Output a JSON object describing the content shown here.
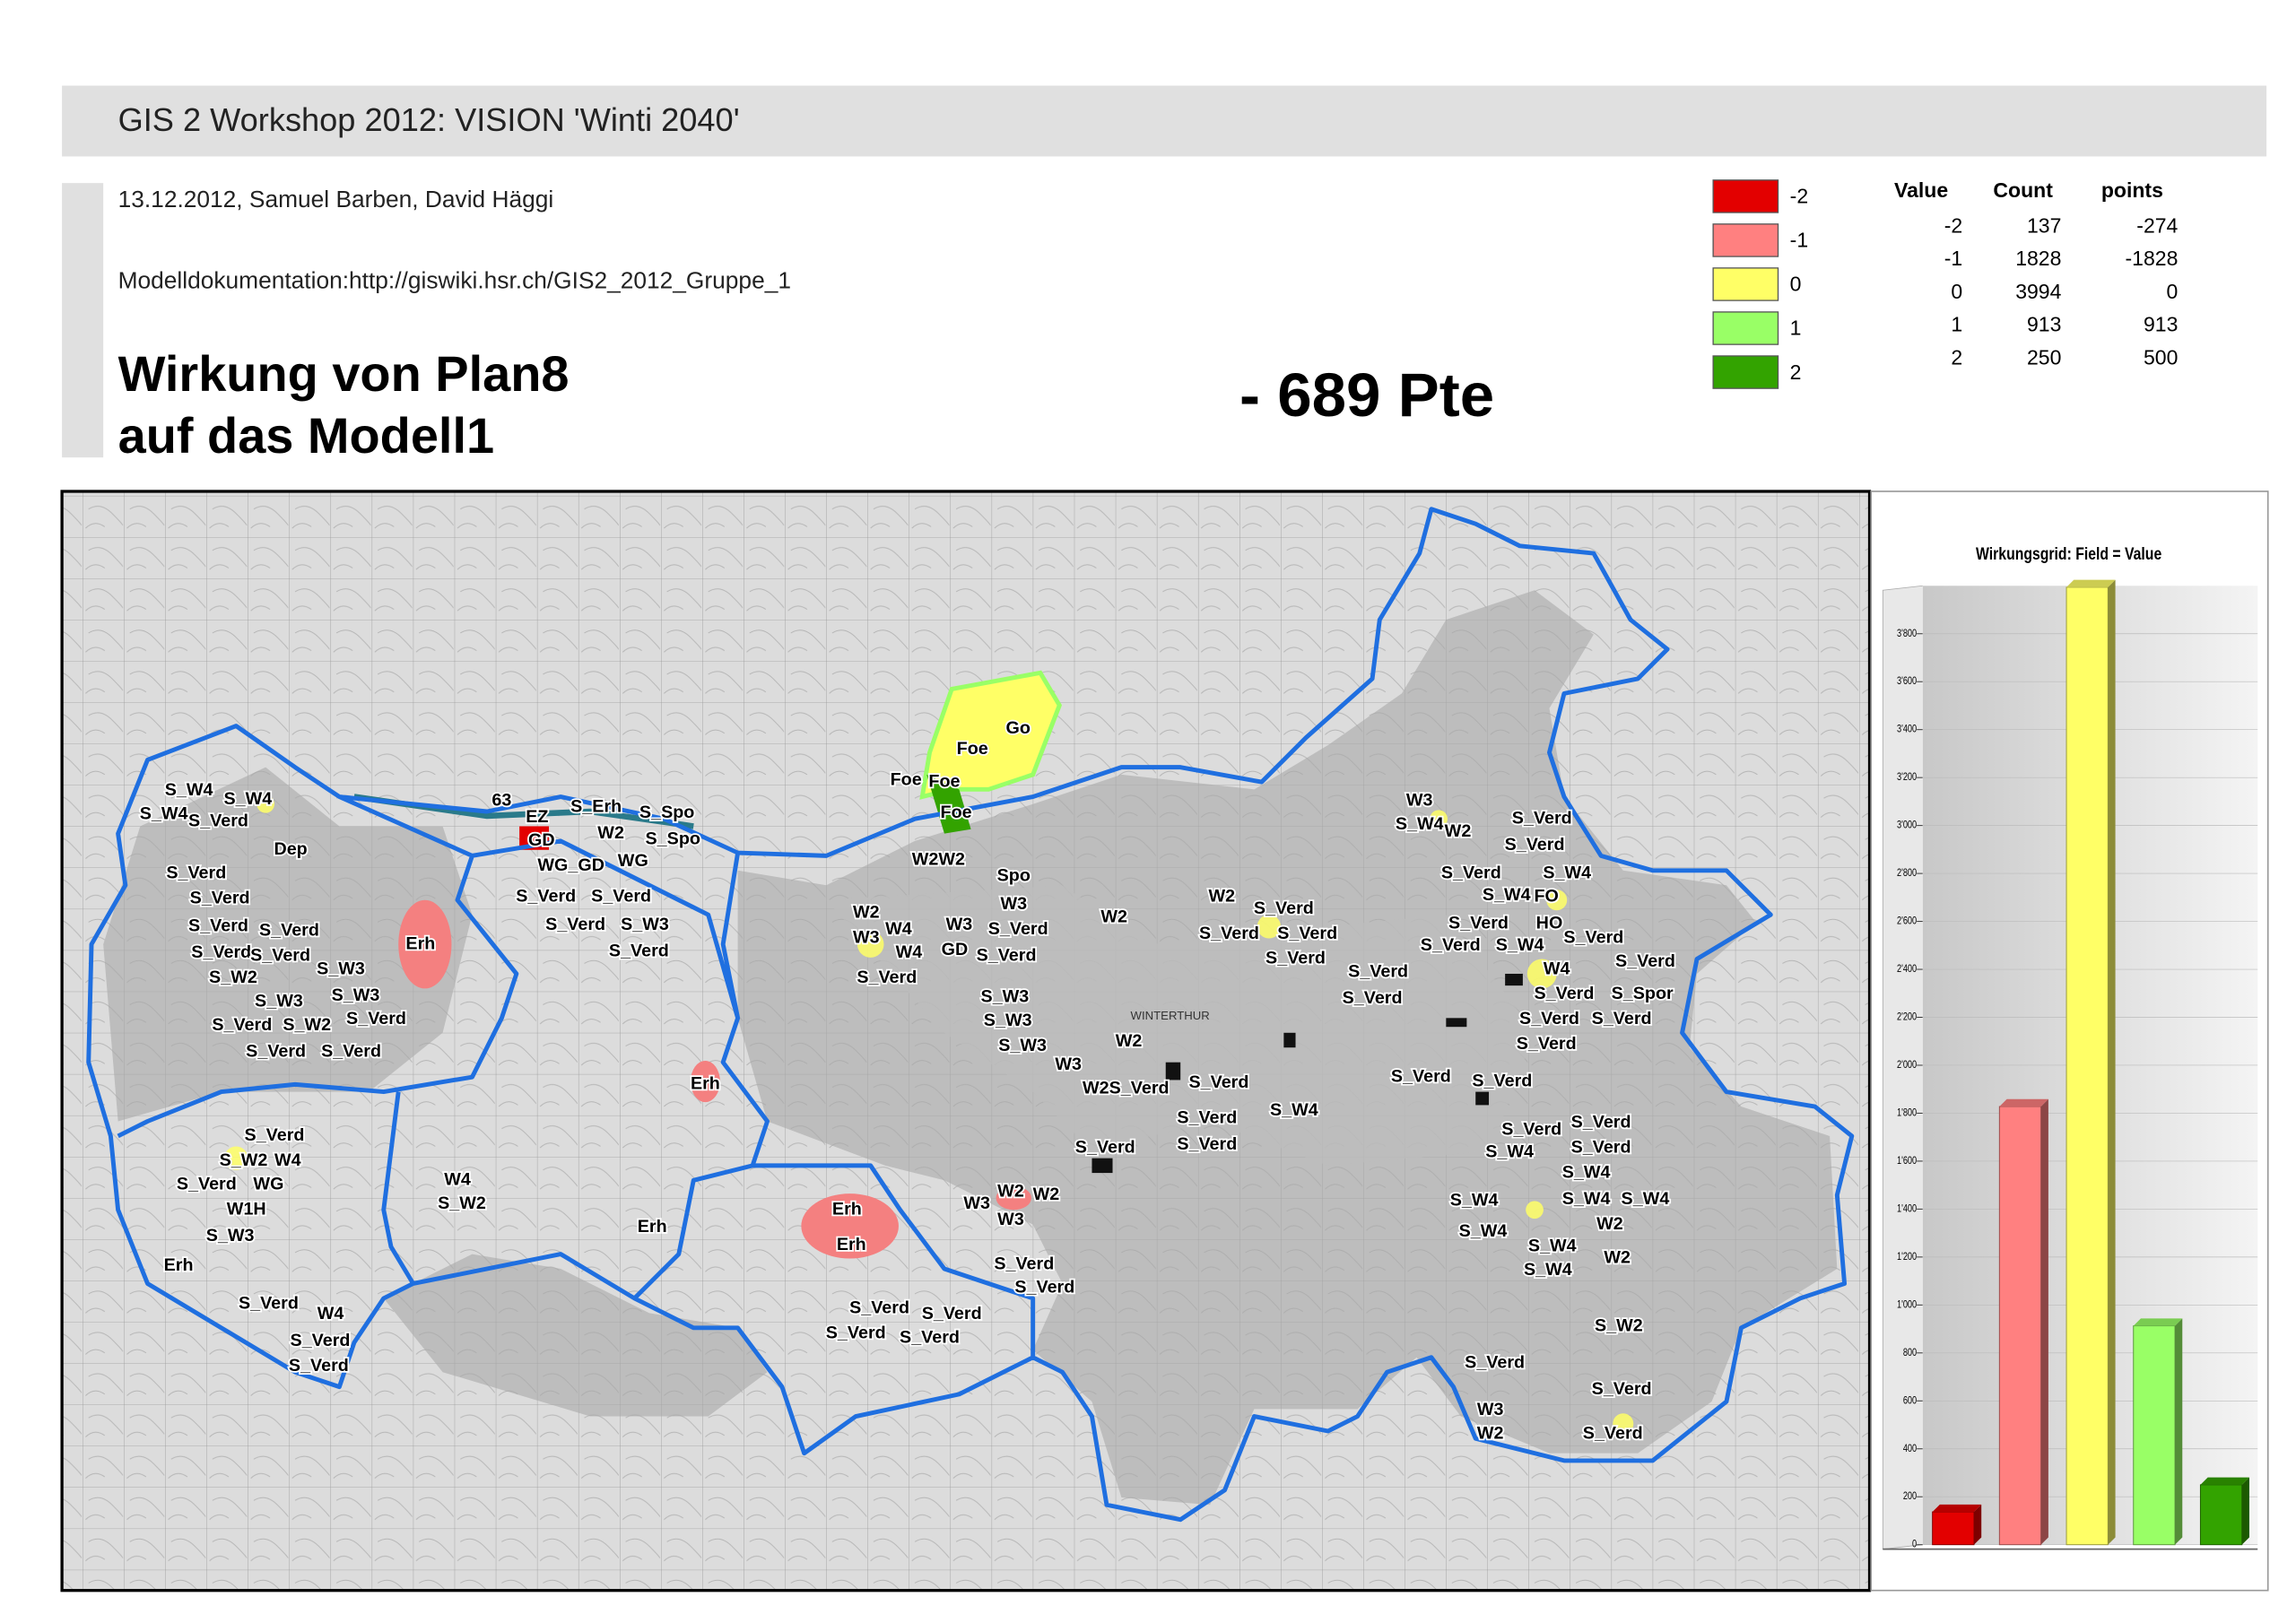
{
  "header": {
    "title": "GIS 2 Workshop 2012: VISION 'Winti 2040'",
    "date": "13.12.2012, Samuel Barben, David Häggi",
    "doc": "Modelldokumentation:http://giswiki.hsr.ch/GIS2_2012_Gruppe_1",
    "heading": [
      "Wirkung von Plan8",
      "auf das Modell1"
    ],
    "result": "- 689 Pte"
  },
  "legend": {
    "items": [
      {
        "label": "-2",
        "color": "#e30000"
      },
      {
        "label": "-1",
        "color": "#ff8080"
      },
      {
        "label": "0",
        "color": "#ffff66"
      },
      {
        "label": "1",
        "color": "#99ff66"
      },
      {
        "label": "2",
        "color": "#33a300"
      }
    ]
  },
  "table": {
    "header": [
      "Value",
      "Count",
      "points"
    ],
    "rows": [
      [
        "-2",
        "137",
        "-274"
      ],
      [
        "-1",
        "1828",
        "-1828"
      ],
      [
        "0",
        "3994",
        "0"
      ],
      [
        "1",
        "913",
        "913"
      ],
      [
        "2",
        "250",
        "500"
      ]
    ]
  },
  "map": {
    "place": "WINTERTHUR",
    "labels": [
      "63",
      "EZ",
      "GD",
      "S_Erh",
      "S_Spo",
      "W2",
      "S_Spo",
      "WG_GD",
      "WG",
      "S_Verd",
      "S_Verd",
      "S_Verd",
      "S_W3",
      "S_Verd",
      "Erh",
      "Erh",
      "Erh",
      "Erh",
      "Erh",
      "Erh",
      "Go",
      "Foe",
      "Foe",
      "Foe",
      "Foe",
      "W2W2",
      "Spo",
      "W3",
      "S_W4",
      "S_W4",
      "S_W4",
      "S_Verd",
      "Dep",
      "S_Verd",
      "S_Verd",
      "S_Verd",
      "S_Verd",
      "S_Verd",
      "S_Verd",
      "S_W2",
      "S_W3",
      "S_W3",
      "S_W3",
      "S_Verd",
      "S_W2",
      "S_Verd",
      "S_Verd",
      "S_Verd",
      "S_Verd",
      "S_W2",
      "W4",
      "S_Verd",
      "WG",
      "W1H",
      "S_W3",
      "W4",
      "S_W2",
      "S_Verd",
      "W4",
      "S_Verd",
      "S_Verd",
      "W2",
      "W3",
      "W4",
      "W4",
      "W3",
      "S_Verd",
      "GD",
      "S_Verd",
      "S_Verd",
      "W2",
      "S_W3",
      "S_W3",
      "S_W3",
      "W3",
      "W2",
      "W2S_Verd",
      "S_Verd",
      "S_Verd",
      "S_W4",
      "S_Verd",
      "S_Verd",
      "W2",
      "S_Verd",
      "S_Verd",
      "S_Verd",
      "S_Verd",
      "S_Verd",
      "S_Verd",
      "W3",
      "S_W4",
      "W2",
      "S_Verd",
      "S_Verd",
      "S_Verd",
      "S_W4",
      "S_W4",
      "FO",
      "S_Verd",
      "HO",
      "S_Verd",
      "S_Verd",
      "S_W4",
      "S_Verd",
      "W4",
      "S_Verd",
      "S_Spor",
      "S_Verd",
      "S_Verd",
      "S_Verd",
      "S_Verd",
      "S_Verd",
      "S_Verd",
      "S_Verd",
      "S_W4",
      "S_Verd",
      "S_W4",
      "S_W4",
      "S_W4",
      "S_W4",
      "W2",
      "S_W4",
      "S_W4",
      "W2",
      "S_W4",
      "W3",
      "W2",
      "W3",
      "W2",
      "S_Verd",
      "S_Verd",
      "S_Verd",
      "S_Verd",
      "S_Verd",
      "S_Verd",
      "S_W2",
      "S_Verd",
      "S_Verd",
      "W3",
      "W2",
      "S_Verd"
    ]
  },
  "chart_data": {
    "type": "bar",
    "title": "Wirkungsgrid: Field = Value",
    "values": [
      137,
      1828,
      3994,
      913,
      250
    ],
    "colors": [
      "#e30000",
      "#ff8080",
      "#ffff66",
      "#99ff66",
      "#33a300"
    ],
    "ylim": [
      0,
      4000
    ],
    "yticks": [
      0,
      200,
      400,
      600,
      800,
      {
        "value": 1000,
        "label": "1'000"
      },
      {
        "value": 1200,
        "label": "1'200"
      },
      {
        "value": 1400,
        "label": "1'400"
      },
      {
        "value": 1600,
        "label": "1'600"
      },
      {
        "value": 1800,
        "label": "1'800"
      },
      {
        "value": 2000,
        "label": "2'000"
      },
      {
        "value": 2200,
        "label": "2'200"
      },
      {
        "value": 2400,
        "label": "2'400"
      },
      {
        "value": 2600,
        "label": "2'600"
      },
      {
        "value": 2800,
        "label": "2'800"
      },
      {
        "value": 3000,
        "label": "3'000"
      },
      {
        "value": 3200,
        "label": "3'200"
      },
      {
        "value": 3400,
        "label": "3'400"
      },
      {
        "value": 3600,
        "label": "3'600"
      },
      {
        "value": 3800,
        "label": "3'800"
      }
    ],
    "grid": true
  }
}
